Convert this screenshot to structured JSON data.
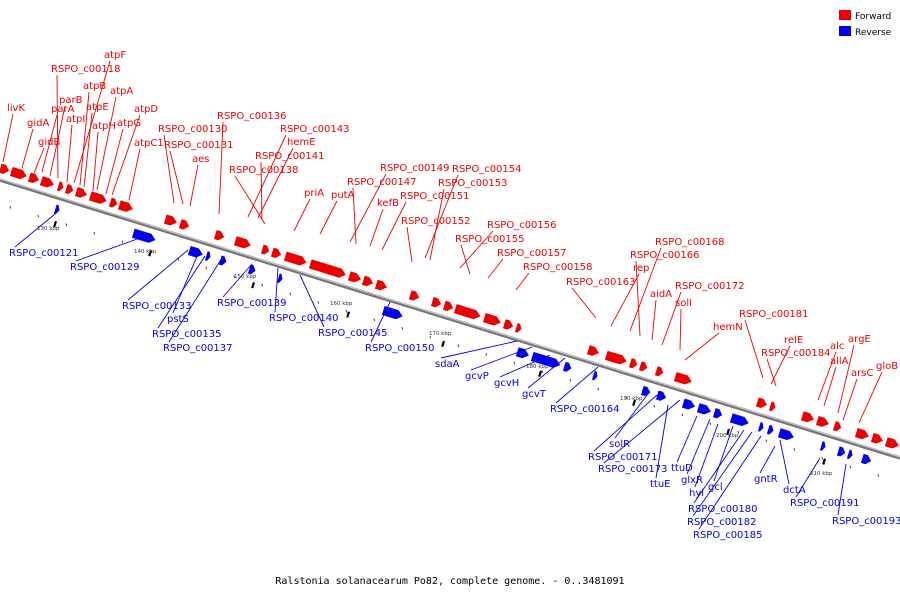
{
  "caption": "Ralstonia solanacearum Po82, complete genome. - 0..3481091",
  "legend": [
    {
      "label": "Forward",
      "color": "#ee0000"
    },
    {
      "label": "Reverse",
      "color": "#0000ee"
    }
  ],
  "ticks": [
    "130 kbp",
    "140 kbp",
    "150 kbp",
    "160 kbp",
    "170 kbp",
    "180 kbp",
    "190 kbp",
    "200 kbp",
    "210 kbp"
  ],
  "forward_labels": [
    "livK",
    "gidA",
    "gidB",
    "parA",
    "parB",
    "RSPO_c00118",
    "atpF",
    "atpB",
    "atpI",
    "atpE",
    "atpA",
    "atpH",
    "atpG",
    "atpD",
    "atpC1",
    "RSPO_c00130",
    "RSPO_c00131",
    "aes",
    "RSPO_c00136",
    "RSPO_c00143",
    "hemE",
    "RSPO_c00141",
    "RSPO_c00138",
    "priA",
    "putA",
    "RSPO_c00149",
    "RSPO_c00147",
    "kefB",
    "RSPO_c00151",
    "RSPO_c00154",
    "RSPO_c00153",
    "RSPO_c00152",
    "RSPO_c00156",
    "RSPO_c00155",
    "RSPO_c00157",
    "RSPO_c00158",
    "RSPO_c00163",
    "rep",
    "RSPO_c00168",
    "RSPO_c00166",
    "aidA",
    "RSPO_c00172",
    "solI",
    "hemN",
    "RSPO_c00181",
    "relE",
    "RSPO_c00184",
    "alc",
    "allA",
    "argE",
    "arsC",
    "gloB"
  ],
  "reverse_labels": [
    "RSPO_c00121",
    "RSPO_c00129",
    "RSPO_c00133",
    "pstS",
    "RSPO_c00135",
    "RSPO_c00137",
    "RSPO_c00139",
    "RSPO_c00140",
    "RSPO_c00145",
    "RSPO_c00150",
    "sdaA",
    "gcvP",
    "gcvH",
    "gcvT",
    "RSPO_c00164",
    "solR",
    "RSPO_c00171",
    "RSPO_c00173",
    "ttuE",
    "ttuD",
    "glxR",
    "hyi",
    "gcl",
    "RSPO_c00180",
    "RSPO_c00182",
    "RSPO_c00185",
    "gntR",
    "dctA",
    "RSPO_c00191",
    "RSPO_c00193"
  ]
}
